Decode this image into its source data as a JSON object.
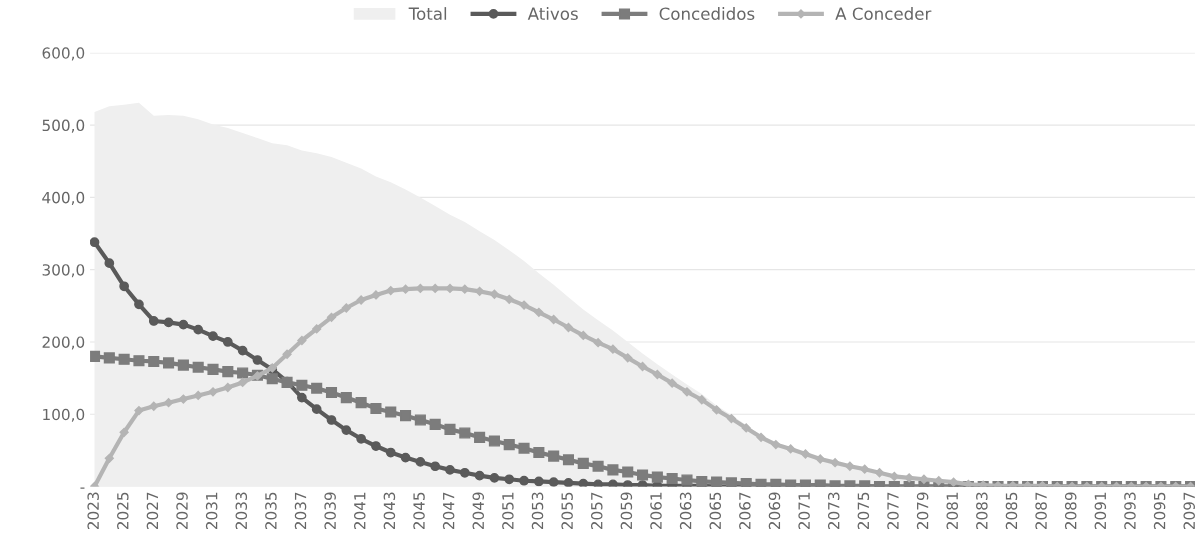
{
  "chart_data": {
    "type": "line",
    "categories": [
      "2023",
      null,
      "2025",
      null,
      "2027",
      null,
      "2029",
      null,
      "2031",
      null,
      "2033",
      null,
      "2035",
      null,
      "2037",
      null,
      "2039",
      null,
      "2041",
      null,
      "2043",
      null,
      "2045",
      null,
      "2047",
      null,
      "2049",
      null,
      "2051",
      null,
      "2053",
      null,
      "2055",
      null,
      "2057",
      null,
      "2059",
      null,
      "2061",
      null,
      "2063",
      null,
      "2065",
      null,
      "2067",
      null,
      "2069",
      null,
      "2071",
      null,
      "2073",
      null,
      "2075",
      null,
      "2077",
      null,
      "2079",
      null,
      "2081",
      null,
      "2083",
      null,
      "2085",
      null,
      "2087",
      null,
      "2089",
      null,
      "2091",
      null,
      "2093",
      null,
      "2095",
      null,
      "2097"
    ],
    "series": [
      {
        "name": "Total",
        "type": "area",
        "color": "#efefef",
        "marker": "none",
        "values": [
          518,
          526,
          528,
          531,
          513,
          514,
          513,
          508,
          501,
          496,
          489,
          482,
          475,
          472,
          465,
          461,
          456,
          448,
          440,
          429,
          421,
          411,
          400,
          388,
          376,
          366,
          353,
          341,
          327,
          312,
          295,
          279,
          262,
          245,
          230,
          216,
          200,
          184,
          169,
          155,
          141,
          128,
          112,
          99,
          85,
          71,
          61,
          54,
          47,
          40,
          34,
          29,
          25,
          19,
          14,
          12,
          10,
          8,
          6,
          3,
          2,
          1,
          1,
          1,
          1,
          0,
          0,
          0,
          0,
          0,
          0,
          0,
          0,
          0,
          0
        ]
      },
      {
        "name": "Ativos",
        "color": "#5a5a5a",
        "marker": "circle",
        "values": [
          338,
          309,
          277,
          252,
          229,
          227,
          224,
          217,
          208,
          200,
          188,
          175,
          162,
          145,
          123,
          107,
          92,
          78,
          66,
          56,
          47,
          40,
          34,
          28,
          23,
          19,
          15,
          12,
          10,
          8,
          7,
          6,
          5,
          4,
          3,
          3,
          2,
          2,
          1,
          1,
          1,
          1,
          0,
          0,
          0,
          0,
          0,
          0,
          0,
          0,
          0,
          0,
          0,
          0,
          0,
          0,
          0,
          0,
          0,
          0,
          0,
          0,
          0,
          0,
          0,
          0,
          0,
          0,
          0,
          0,
          0,
          0,
          0,
          0,
          0
        ]
      },
      {
        "name": "Concedidos",
        "color": "#7c7c7c",
        "marker": "square",
        "values": [
          180,
          178,
          176,
          174,
          173,
          171,
          168,
          165,
          162,
          159,
          157,
          154,
          149,
          144,
          140,
          136,
          130,
          123,
          116,
          108,
          103,
          98,
          92,
          86,
          79,
          74,
          68,
          63,
          58,
          53,
          47,
          42,
          37,
          32,
          28,
          23,
          20,
          16,
          13,
          11,
          9,
          7,
          6,
          5,
          4,
          3,
          3,
          2,
          2,
          2,
          1,
          1,
          1,
          0,
          0,
          0,
          0,
          0,
          0,
          0,
          0,
          0,
          0,
          0,
          0,
          0,
          0,
          0,
          0,
          0,
          0,
          0,
          0,
          0,
          0
        ]
      },
      {
        "name": "A Conceder",
        "color": "#b4b4b4",
        "marker": "diamond",
        "values": [
          0,
          39,
          75,
          105,
          111,
          116,
          121,
          126,
          131,
          137,
          144,
          153,
          164,
          183,
          202,
          218,
          234,
          247,
          258,
          265,
          271,
          273,
          274,
          274,
          274,
          273,
          270,
          266,
          259,
          251,
          241,
          231,
          220,
          209,
          199,
          190,
          178,
          166,
          155,
          143,
          131,
          120,
          106,
          94,
          81,
          68,
          58,
          52,
          45,
          38,
          33,
          28,
          24,
          19,
          14,
          12,
          10,
          8,
          6,
          3,
          2,
          1,
          1,
          1,
          1,
          0,
          0,
          0,
          0,
          0,
          0,
          0,
          0,
          0,
          0
        ]
      }
    ],
    "ylim": [
      0,
      600
    ],
    "yticks": [
      {
        "value": 0,
        "label": "-"
      },
      {
        "value": 100,
        "label": "100,0"
      },
      {
        "value": 200,
        "label": "200,0"
      },
      {
        "value": 300,
        "label": "300,0"
      },
      {
        "value": 400,
        "label": "400,0"
      },
      {
        "value": 500,
        "label": "500,0"
      },
      {
        "value": 600,
        "label": "600,0"
      }
    ],
    "grid": "y",
    "legend": "top"
  }
}
